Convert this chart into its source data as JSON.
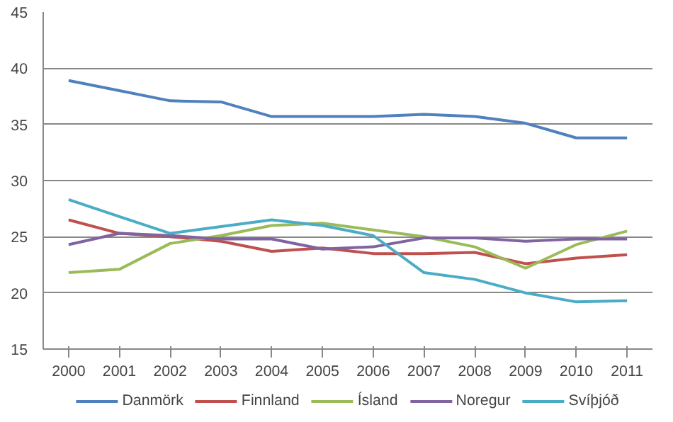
{
  "chart_data": {
    "type": "line",
    "x": [
      2000,
      2001,
      2002,
      2003,
      2004,
      2005,
      2006,
      2007,
      2008,
      2009,
      2010,
      2011
    ],
    "xticks": [
      2000,
      2001,
      2002,
      2003,
      2004,
      2005,
      2006,
      2007,
      2008,
      2009,
      2010,
      2011
    ],
    "xlim": [
      1999.5,
      2011.5
    ],
    "ylim": [
      15,
      45
    ],
    "yticks": [
      15,
      20,
      25,
      30,
      35,
      40,
      45
    ],
    "grid": "y",
    "legend": "bottom",
    "marker": "none",
    "line_style": "solid",
    "series": [
      {
        "name": "Danmörk",
        "color": "#4f81bd",
        "values": [
          38.9,
          38.0,
          37.1,
          37.0,
          35.7,
          35.7,
          35.7,
          35.9,
          35.7,
          35.1,
          33.8,
          33.8
        ]
      },
      {
        "name": "Finnland",
        "color": "#c0504d",
        "values": [
          26.5,
          25.3,
          25.0,
          24.6,
          23.7,
          24.0,
          23.5,
          23.5,
          23.6,
          22.6,
          23.1,
          23.4
        ]
      },
      {
        "name": "Ísland",
        "color": "#9bbb59",
        "values": [
          21.8,
          22.1,
          24.4,
          25.1,
          26.0,
          26.2,
          25.6,
          25.0,
          24.1,
          22.2,
          24.3,
          25.5
        ]
      },
      {
        "name": "Noregur",
        "color": "#8064a2",
        "values": [
          24.3,
          25.3,
          25.1,
          24.8,
          24.8,
          23.9,
          24.1,
          24.9,
          24.9,
          24.6,
          24.8,
          24.8
        ]
      },
      {
        "name": "Svíþjóð",
        "color": "#4bacc6",
        "values": [
          28.3,
          26.8,
          25.3,
          25.9,
          26.5,
          26.0,
          25.1,
          21.8,
          21.2,
          20.0,
          19.2,
          19.3
        ]
      }
    ]
  }
}
